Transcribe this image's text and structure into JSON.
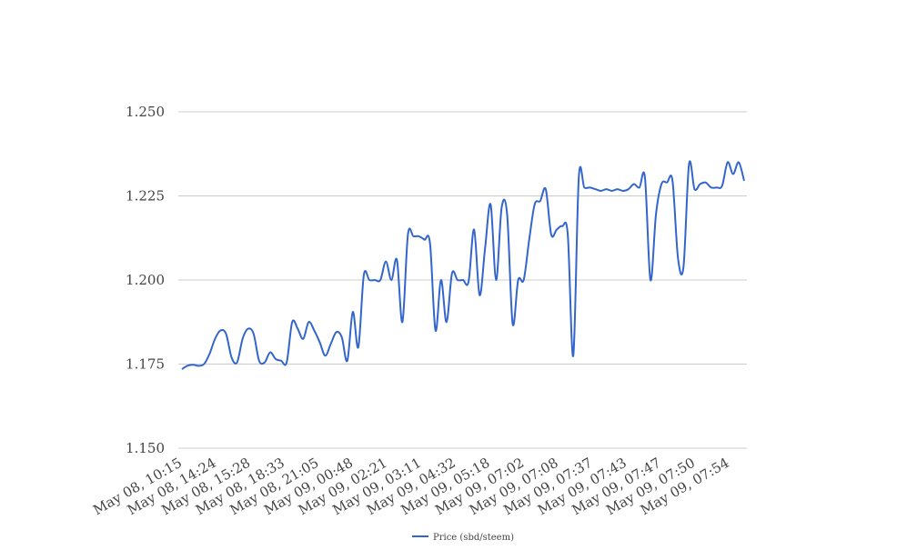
{
  "chart_data": {
    "type": "line",
    "y_ticks": [
      "1.150",
      "1.175",
      "1.200",
      "1.225",
      "1.250"
    ],
    "ylim": [
      1.15,
      1.25
    ],
    "grid": true,
    "legend_position": "bottom",
    "x_tick_labels": [
      "May 08, 10:15",
      "May 08, 14:24",
      "May 08, 15:28",
      "May 08, 18:33",
      "May 08, 21:05",
      "May 09, 00:48",
      "May 09, 02:21",
      "May 09, 03:11",
      "May 09, 04:32",
      "May 09, 05:18",
      "May 09, 07:02",
      "May 09, 07:08",
      "May 09, 07:37",
      "May 09, 07:43",
      "May 09, 07:47",
      "May 09, 07:50",
      "May 09, 07:54"
    ],
    "series": [
      {
        "name": "Price (sbd/steem)",
        "color": "#3366cc",
        "values": [
          1.1735,
          1.1745,
          1.1748,
          1.1745,
          1.175,
          1.178,
          1.1825,
          1.185,
          1.184,
          1.177,
          1.1755,
          1.1825,
          1.1855,
          1.184,
          1.176,
          1.1755,
          1.1785,
          1.1765,
          1.176,
          1.1755,
          1.1875,
          1.1855,
          1.1825,
          1.1875,
          1.185,
          1.1815,
          1.1775,
          1.181,
          1.1845,
          1.183,
          1.176,
          1.1905,
          1.18,
          1.2015,
          1.2,
          1.2,
          1.2,
          1.2055,
          1.2,
          1.206,
          1.1875,
          1.2135,
          1.213,
          1.213,
          1.212,
          1.211,
          1.185,
          1.2,
          1.1875,
          1.202,
          1.2,
          1.2,
          1.1995,
          1.215,
          1.1955,
          1.2095,
          1.2225,
          1.2,
          1.2215,
          1.2195,
          1.187,
          1.2,
          1.2,
          1.212,
          1.2225,
          1.2235,
          1.227,
          1.2135,
          1.215,
          1.216,
          1.2135,
          1.1775,
          1.2305,
          1.2275,
          1.2275,
          1.227,
          1.2265,
          1.227,
          1.2265,
          1.227,
          1.2265,
          1.227,
          1.2285,
          1.2275,
          1.2305,
          1.2,
          1.2195,
          1.2285,
          1.229,
          1.2295,
          1.2065,
          1.204,
          1.2345,
          1.227,
          1.2285,
          1.229,
          1.2275,
          1.2275,
          1.228,
          1.235,
          1.2315,
          1.235,
          1.2295
        ]
      }
    ]
  }
}
